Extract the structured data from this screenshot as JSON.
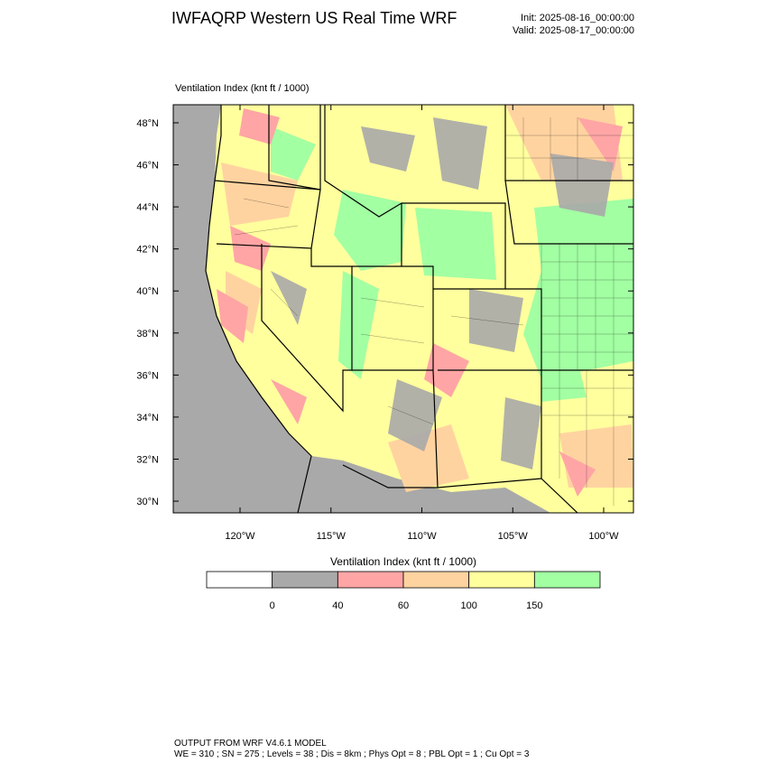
{
  "header": {
    "title": "IWFAQRP Western US Real Time WRF",
    "init": "Init: 2025-08-16_00:00:00",
    "valid": "Valid: 2025-08-17_00:00:00"
  },
  "map": {
    "subtitle": "Ventilation Index   (knt ft / 1000)",
    "lat_ticks": [
      {
        "value": 48,
        "label": "48°N"
      },
      {
        "value": 46,
        "label": "46°N"
      },
      {
        "value": 44,
        "label": "44°N"
      },
      {
        "value": 42,
        "label": "42°N"
      },
      {
        "value": 40,
        "label": "40°N"
      },
      {
        "value": 38,
        "label": "38°N"
      },
      {
        "value": 36,
        "label": "36°N"
      },
      {
        "value": 34,
        "label": "34°N"
      },
      {
        "value": 32,
        "label": "32°N"
      },
      {
        "value": 30,
        "label": "30°N"
      }
    ],
    "lon_ticks": [
      {
        "value": -120,
        "label": "120°W"
      },
      {
        "value": -115,
        "label": "115°W"
      },
      {
        "value": -110,
        "label": "110°W"
      },
      {
        "value": -105,
        "label": "105°W"
      },
      {
        "value": -100,
        "label": "100°W"
      }
    ]
  },
  "colorbar": {
    "title": "Ventilation Index   (knt ft / 1000)",
    "levels": [
      0,
      40,
      60,
      100,
      150
    ],
    "colors": [
      "#ffffff",
      "#a9a9a9",
      "#ffa5a5",
      "#ffd3a0",
      "#ffff9e",
      "#a2ffa2"
    ]
  },
  "footer": {
    "line1": "OUTPUT FROM WRF V4.6.1 MODEL",
    "line2": "WE = 310 ; SN = 275 ; Levels = 38 ; Dis = 8km ; Phys Opt = 8 ; PBL Opt = 1 ; Cu Opt = 3"
  }
}
